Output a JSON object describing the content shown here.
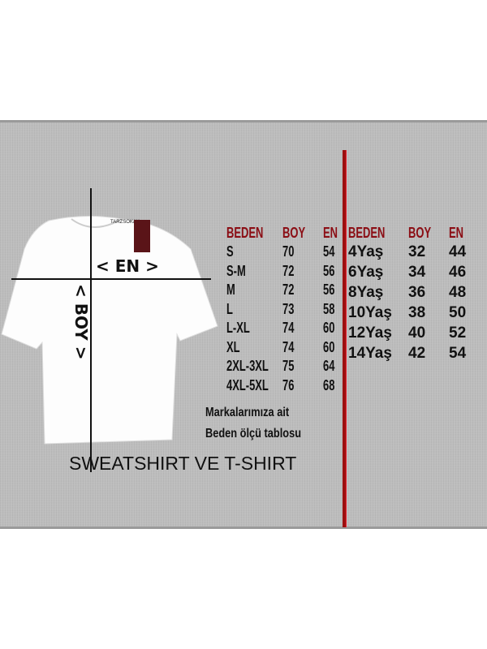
{
  "graphic": {
    "shirt_brand_label": "TARZSOKAK",
    "en_marker": "< EN >",
    "boy_marker": "< BOY >",
    "colors": {
      "panel": "#bdbdbd",
      "header": "#8b0d14",
      "divider": "#9b1010"
    }
  },
  "adult_table": {
    "headers": [
      "BEDEN",
      "BOY",
      "EN"
    ],
    "rows": [
      [
        "S",
        "70",
        "54"
      ],
      [
        "S-M",
        "72",
        "56"
      ],
      [
        "M",
        "72",
        "56"
      ],
      [
        "L",
        "73",
        "58"
      ],
      [
        "L-XL",
        "74",
        "60"
      ],
      [
        "XL",
        "74",
        "60"
      ],
      [
        "2XL-3XL",
        "75",
        "64"
      ],
      [
        "4XL-5XL",
        "76",
        "68"
      ]
    ]
  },
  "kids_table": {
    "headers": [
      "BEDEN",
      "BOY",
      "EN"
    ],
    "rows": [
      [
        "4Yaş",
        "32",
        "44"
      ],
      [
        "6Yaş",
        "34",
        "46"
      ],
      [
        "8Yaş",
        "36",
        "48"
      ],
      [
        "10Yaş",
        "38",
        "50"
      ],
      [
        "12Yaş",
        "40",
        "52"
      ],
      [
        "14Yaş",
        "42",
        "54"
      ]
    ]
  },
  "note": {
    "line1": "Markalarımıza ait",
    "line2": "Beden ölçü tablosu"
  },
  "title": "SWEATSHIRT VE T-SHIRT"
}
